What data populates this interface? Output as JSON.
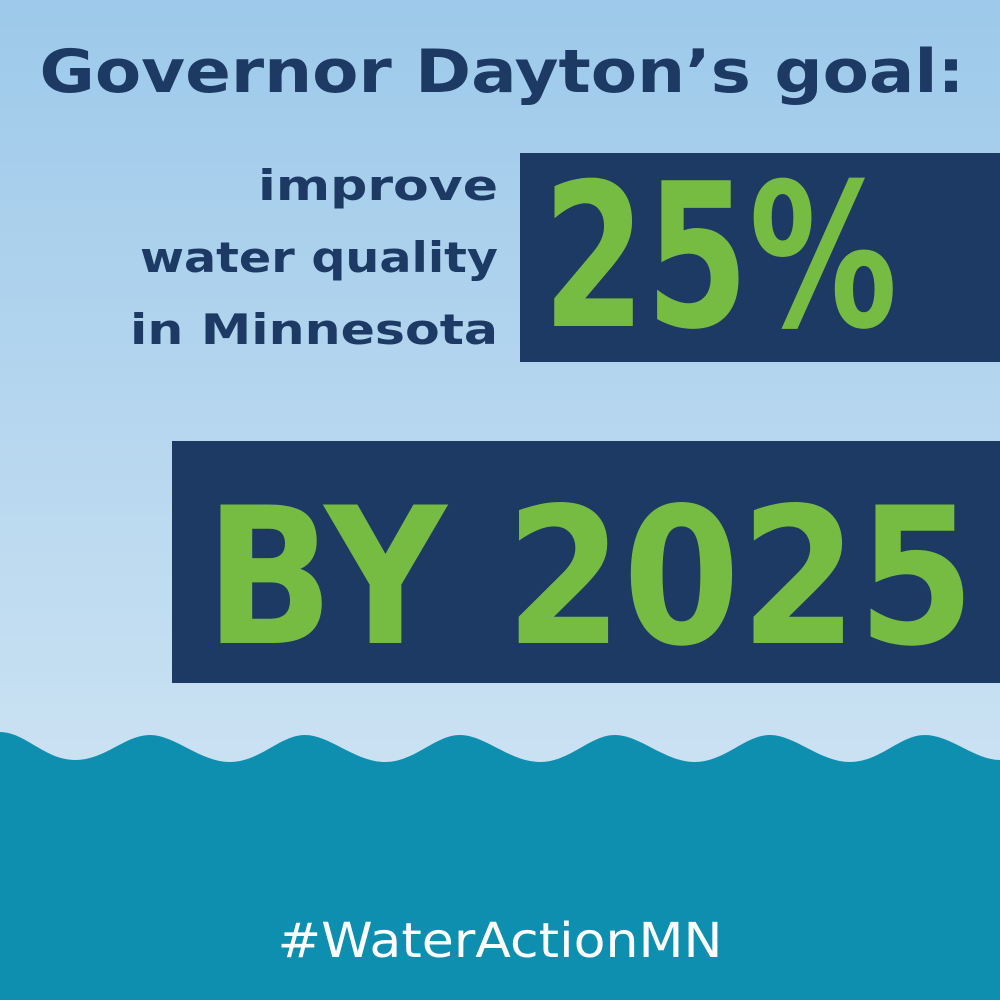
{
  "header": {
    "title": "Governor Dayton’s goal:"
  },
  "goal": {
    "lines": [
      "improve",
      "water quality",
      "in Minnesota"
    ],
    "amount": "25%",
    "deadline": "BY 2025"
  },
  "footer": {
    "hashtag": "#WaterActionMN"
  }
}
